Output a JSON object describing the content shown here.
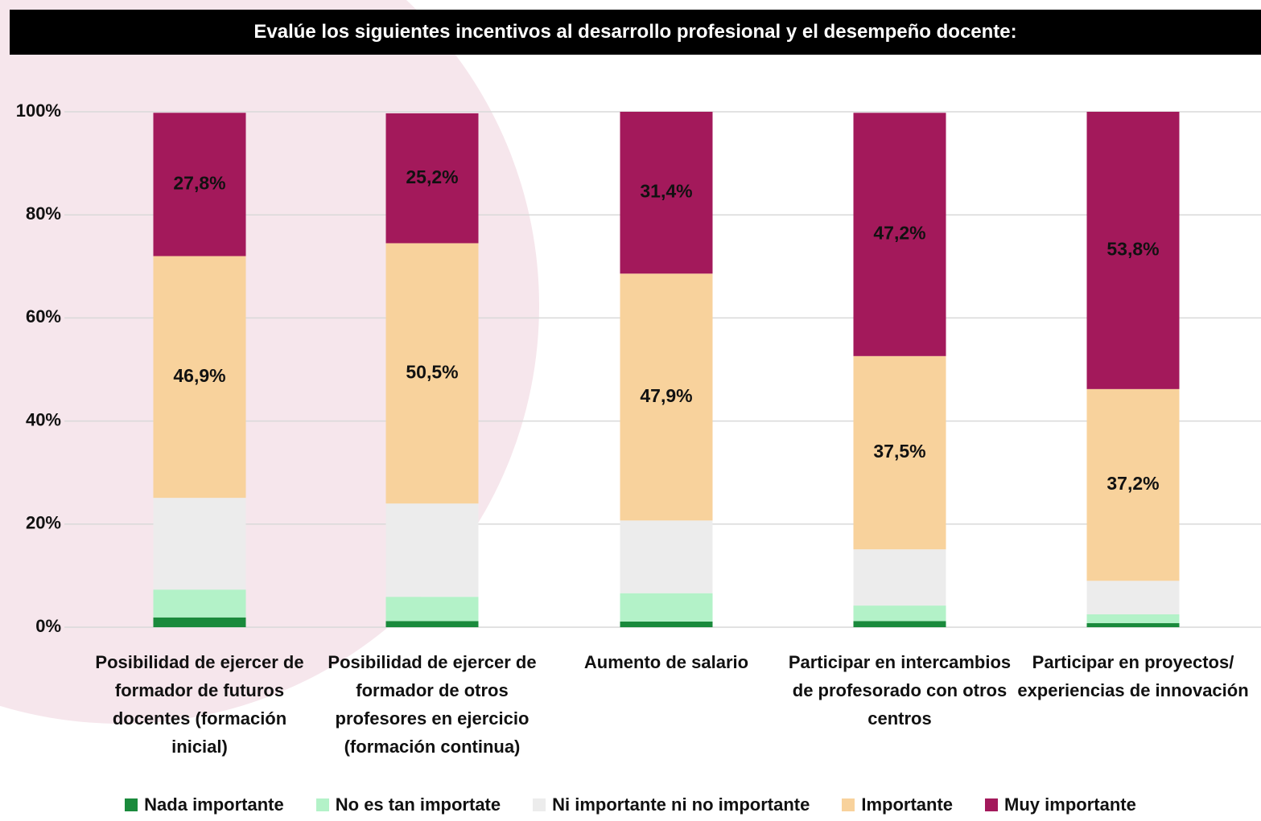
{
  "chart_data": {
    "type": "stacked_bar",
    "title": "Evalúe los siguientes incentivos al desarrollo profesional y el desempeño docente:",
    "categories": [
      "Posibilidad de ejercer de formador de futuros docentes (formación inicial)",
      "Posibilidad de ejercer de formador de otros profesores en ejercicio (formación continua)",
      "Aumento de salario",
      "Participar en intercambios de profesorado con otros centros",
      "Participar en proyectos/ experiencias de innovación"
    ],
    "series": [
      {
        "name": "Nada importante",
        "color": "#1a8a3c",
        "values": [
          1.9,
          1.2,
          1.1,
          1.2,
          0.8
        ]
      },
      {
        "name": "No es tan importate",
        "color": "#b3f2c8",
        "values": [
          5.4,
          4.7,
          5.5,
          3.0,
          1.7
        ]
      },
      {
        "name": "Ni importante ni no importante",
        "color": "#ececec",
        "values": [
          17.8,
          18.1,
          14.1,
          10.9,
          6.5
        ]
      },
      {
        "name": "Importante",
        "color": "#f8d29c",
        "values": [
          46.9,
          50.5,
          47.9,
          37.5,
          37.2
        ],
        "value_labels": [
          "46,9%",
          "50,5%",
          "47,9%",
          "37,5%",
          "37,2%"
        ]
      },
      {
        "name": "Muy importante",
        "color": "#a3195b",
        "values": [
          27.8,
          25.2,
          31.4,
          47.2,
          53.8
        ],
        "value_labels": [
          "27,8%",
          "25,2%",
          "31,4%",
          "47,2%",
          "53,8%"
        ]
      }
    ],
    "ylim": [
      0,
      100
    ],
    "yticks": [
      {
        "value": 0,
        "label": "0%"
      },
      {
        "value": 20,
        "label": "20%"
      },
      {
        "value": 40,
        "label": "40%"
      },
      {
        "value": 60,
        "label": "60%"
      },
      {
        "value": 80,
        "label": "80%"
      },
      {
        "value": 100,
        "label": "100%"
      }
    ],
    "grid": true
  }
}
